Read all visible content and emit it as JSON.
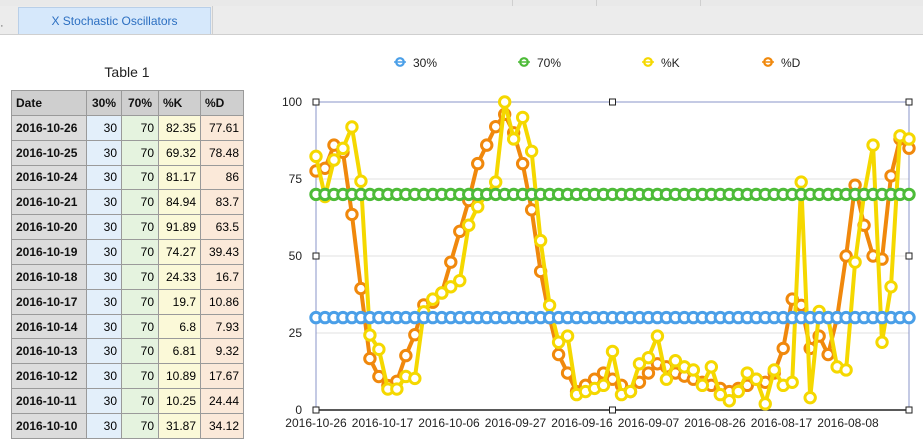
{
  "tabs": [
    {
      "label": "X Stochastic Oscillators"
    }
  ],
  "table": {
    "title": "Table 1",
    "headers": [
      "Date",
      "30%",
      "70%",
      "%K",
      "%D"
    ],
    "rows": [
      [
        "2016-10-26",
        "30",
        "70",
        "82.35",
        "77.61"
      ],
      [
        "2016-10-25",
        "30",
        "70",
        "69.32",
        "78.48"
      ],
      [
        "2016-10-24",
        "30",
        "70",
        "81.17",
        "86"
      ],
      [
        "2016-10-21",
        "30",
        "70",
        "84.94",
        "83.7"
      ],
      [
        "2016-10-20",
        "30",
        "70",
        "91.89",
        "63.5"
      ],
      [
        "2016-10-19",
        "30",
        "70",
        "74.27",
        "39.43"
      ],
      [
        "2016-10-18",
        "30",
        "70",
        "24.33",
        "16.7"
      ],
      [
        "2016-10-17",
        "30",
        "70",
        "19.7",
        "10.86"
      ],
      [
        "2016-10-14",
        "30",
        "70",
        "6.8",
        "7.93"
      ],
      [
        "2016-10-13",
        "30",
        "70",
        "6.81",
        "9.32"
      ],
      [
        "2016-10-12",
        "30",
        "70",
        "10.89",
        "17.67"
      ],
      [
        "2016-10-11",
        "30",
        "70",
        "10.25",
        "24.44"
      ],
      [
        "2016-10-10",
        "30",
        "70",
        "31.87",
        "34.12"
      ]
    ]
  },
  "chart_data": {
    "type": "line",
    "legend_position": "top",
    "ylim": [
      0,
      100
    ],
    "y_ticks": [
      "0",
      "25",
      "50",
      "75",
      "100"
    ],
    "x_ticks": [
      "2016-10-26",
      "2016-10-17",
      "2016-10-06",
      "2016-09-27",
      "2016-09-16",
      "2016-09-07",
      "2016-08-26",
      "2016-08-17",
      "2016-08-08"
    ],
    "series": [
      {
        "name": "30%",
        "color": "#4a9fe8",
        "values": [
          30,
          30,
          30,
          30,
          30,
          30,
          30,
          30,
          30,
          30,
          30,
          30,
          30,
          30,
          30,
          30,
          30,
          30,
          30,
          30,
          30,
          30,
          30,
          30,
          30,
          30,
          30,
          30,
          30,
          30,
          30,
          30,
          30,
          30,
          30,
          30,
          30,
          30,
          30,
          30,
          30,
          30,
          30,
          30,
          30,
          30,
          30,
          30,
          30,
          30,
          30,
          30,
          30,
          30,
          30,
          30,
          30,
          30,
          30,
          30,
          30,
          30,
          30,
          30,
          30,
          30,
          30
        ]
      },
      {
        "name": "70%",
        "color": "#4dbb38",
        "values": [
          70,
          70,
          70,
          70,
          70,
          70,
          70,
          70,
          70,
          70,
          70,
          70,
          70,
          70,
          70,
          70,
          70,
          70,
          70,
          70,
          70,
          70,
          70,
          70,
          70,
          70,
          70,
          70,
          70,
          70,
          70,
          70,
          70,
          70,
          70,
          70,
          70,
          70,
          70,
          70,
          70,
          70,
          70,
          70,
          70,
          70,
          70,
          70,
          70,
          70,
          70,
          70,
          70,
          70,
          70,
          70,
          70,
          70,
          70,
          70,
          70,
          70,
          70,
          70,
          70,
          70,
          70
        ]
      },
      {
        "name": "%K",
        "color": "#f5d800",
        "values": [
          82.35,
          69.32,
          81.17,
          84.94,
          91.89,
          74.27,
          24.33,
          19.7,
          6.8,
          6.81,
          10.89,
          10.25,
          31.87,
          36,
          38,
          40,
          42,
          60,
          66,
          70,
          74,
          100,
          88,
          95,
          84,
          55,
          34,
          22,
          24,
          5,
          6,
          7,
          8,
          19,
          5,
          6,
          15,
          17,
          24,
          10,
          16,
          14,
          13,
          8,
          14,
          5,
          3,
          6,
          12,
          10,
          2,
          13,
          8,
          9,
          74,
          4,
          32,
          30,
          14,
          13,
          48,
          70,
          86,
          22,
          40,
          89,
          88
        ]
      },
      {
        "name": "%D",
        "color": "#f0880c",
        "values": [
          77.61,
          78.48,
          86,
          83.7,
          63.5,
          39.43,
          16.7,
          10.86,
          7.93,
          9.32,
          17.67,
          24.44,
          34.12,
          35,
          38,
          48,
          58,
          68,
          80,
          86,
          92,
          96,
          90,
          80,
          65,
          45,
          30,
          18,
          12,
          6,
          8,
          10,
          12,
          10,
          8,
          6,
          9,
          12,
          15,
          14,
          12,
          11,
          10,
          9,
          8,
          7,
          6,
          7,
          8,
          10,
          9,
          12,
          20,
          36,
          34,
          20,
          24,
          18,
          30,
          50,
          73,
          60,
          50,
          49,
          76,
          88,
          85
        ]
      }
    ]
  }
}
